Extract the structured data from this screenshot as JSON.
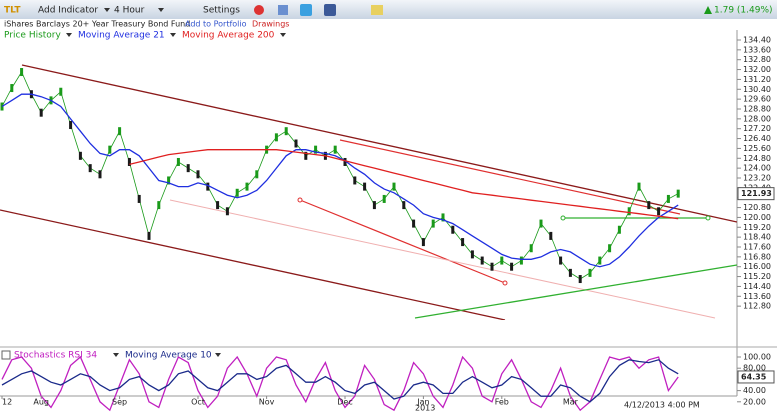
{
  "toolbar": {
    "symbol": "TLT",
    "add_indicator": "Add Indicator",
    "interval": "4 Hour",
    "settings": "Settings",
    "change": "1.79 (1.49%)",
    "fund_name": "iShares Barclays 20+ Year Treasury Bond Fund",
    "add_to_portfolio": "Add to Portfolio",
    "drawings": "Drawings"
  },
  "footer": {
    "timestamp": "4/12/2013 4:00 PM"
  },
  "chart_data": [
    {
      "type": "line",
      "markers": true,
      "down_color": "#1a1a1a",
      "x_sublabel": "2013",
      "categories": [
        "12",
        null,
        null,
        null,
        "Aug",
        null,
        null,
        null,
        null,
        null,
        null,
        null,
        "Sep",
        null,
        null,
        null,
        null,
        null,
        null,
        null,
        "Oct",
        null,
        null,
        null,
        null,
        null,
        null,
        "Nov",
        null,
        null,
        null,
        null,
        null,
        null,
        null,
        "Dec",
        null,
        null,
        null,
        null,
        null,
        null,
        null,
        "Jan",
        null,
        null,
        null,
        null,
        null,
        null,
        null,
        "Feb",
        null,
        null,
        null,
        null,
        null,
        null,
        "Mar",
        null,
        null,
        null,
        null,
        null,
        null,
        null,
        null,
        null,
        null,
        null
      ],
      "ylim": [
        112,
        135
      ],
      "yticks": [
        {
          "value": 112.8,
          "label": "112.80"
        },
        {
          "value": 113.6,
          "label": "113.60"
        },
        {
          "value": 114.4,
          "label": "114.40"
        },
        {
          "value": 115.2,
          "label": "115.20"
        },
        {
          "value": 116,
          "label": "116.00"
        },
        {
          "value": 116.8,
          "label": "116.80"
        },
        {
          "value": 117.6,
          "label": "117.60"
        },
        {
          "value": 118.4,
          "label": "118.40"
        },
        {
          "value": 119.2,
          "label": "119.20"
        },
        {
          "value": 120,
          "label": "120.00"
        },
        {
          "value": 120.8,
          "label": "120.80"
        },
        {
          "value": 121.6,
          "label": "121.60"
        },
        {
          "value": 122.4,
          "label": "122.40"
        },
        {
          "value": 123.2,
          "label": "123.20"
        },
        {
          "value": 124,
          "label": "124.00"
        },
        {
          "value": 124.8,
          "label": "124.80"
        },
        {
          "value": 125.6,
          "label": "125.60"
        },
        {
          "value": 126.4,
          "label": "126.40"
        },
        {
          "value": 127.2,
          "label": "127.20"
        },
        {
          "value": 128,
          "label": "128.00"
        },
        {
          "value": 128.8,
          "label": "128.80"
        },
        {
          "value": 129.6,
          "label": "129.60"
        },
        {
          "value": 130.4,
          "label": "130.40"
        },
        {
          "value": 131.2,
          "label": "131.20"
        },
        {
          "value": 132,
          "label": "132.00"
        },
        {
          "value": 132.8,
          "label": "132.80"
        },
        {
          "value": 133.6,
          "label": "133.60"
        },
        {
          "value": 134.4,
          "label": "134.40"
        }
      ],
      "series": [
        {
          "name": "Price History",
          "color": "#1a9a1a",
          "values": [
            129,
            130.5,
            131.8,
            130,
            128.5,
            129.5,
            130.2,
            127.5,
            125,
            124,
            123.5,
            125.5,
            127,
            124.5,
            121.5,
            118.5,
            121,
            123,
            124.5,
            124,
            123.5,
            122.5,
            121,
            120.5,
            122,
            122.5,
            123.5,
            125.5,
            126.5,
            127,
            126,
            125,
            125.5,
            125,
            125.5,
            124.5,
            123,
            122.5,
            121,
            121.5,
            122.5,
            121,
            119.5,
            118,
            119.5,
            120,
            119,
            118,
            117,
            116.5,
            116,
            116.5,
            116,
            116.5,
            117.5,
            119.5,
            118.5,
            116.5,
            115.5,
            115,
            115.5,
            116.5,
            117.5,
            119,
            120.5,
            122.5,
            121,
            120.5,
            121.5,
            121.93
          ]
        },
        {
          "name": "Moving Average 21",
          "color": "#1f2fe0",
          "values": [
            129,
            129.5,
            130,
            130,
            129.8,
            129.5,
            129,
            128,
            127,
            126,
            125.2,
            125,
            125.5,
            125.5,
            125,
            124,
            123,
            122.8,
            122.5,
            122.5,
            122.8,
            122.6,
            122.2,
            121.8,
            121.6,
            121.8,
            122.2,
            123,
            124,
            125,
            125.5,
            125.5,
            125.3,
            125.2,
            125,
            124.6,
            124,
            123.5,
            122.8,
            122.3,
            122,
            121.5,
            121,
            120.3,
            120,
            119.8,
            119.5,
            119,
            118.5,
            118,
            117.5,
            117,
            116.7,
            116.6,
            116.6,
            116.8,
            117.2,
            117.4,
            117.2,
            116.7,
            116.2,
            116,
            116.2,
            116.8,
            117.6,
            118.5,
            119.3,
            120,
            120.5,
            121
          ]
        },
        {
          "name": "Moving Average 200",
          "color": "#e02020",
          "values": [
            null,
            null,
            null,
            null,
            null,
            null,
            null,
            null,
            null,
            null,
            null,
            null,
            null,
            124.3,
            124.5,
            124.7,
            124.9,
            125.1,
            125.2,
            125.3,
            125.4,
            125.5,
            125.5,
            125.5,
            125.5,
            125.5,
            125.5,
            125.5,
            125.5,
            125.4,
            125.3,
            125.2,
            125.1,
            125,
            124.8,
            124.6,
            124.4,
            124.2,
            124,
            123.8,
            123.6,
            123.4,
            123.2,
            123,
            122.8,
            122.6,
            122.4,
            122.2,
            122,
            121.9,
            121.8,
            121.7,
            121.6,
            121.5,
            121.4,
            121.3,
            121.2,
            121.1,
            121,
            120.9,
            120.8,
            120.7,
            120.6,
            120.5,
            120.4,
            120.3,
            120.2,
            120.1,
            120,
            119.9
          ]
        }
      ]
    },
    {
      "type": "line",
      "ylim": [
        0,
        100
      ],
      "yticks": [
        {
          "value": 100,
          "label": "100.00"
        },
        {
          "value": 80,
          "label": "80.00"
        },
        {
          "value": 40,
          "label": "40.00"
        },
        {
          "value": 20,
          "label": "20.00"
        }
      ],
      "series": [
        {
          "name": "Stochastics RSI 34",
          "color": "#c020c0",
          "values": [
            60,
            95,
            100,
            80,
            30,
            10,
            40,
            85,
            100,
            60,
            20,
            5,
            50,
            95,
            70,
            20,
            10,
            60,
            100,
            90,
            40,
            10,
            30,
            80,
            100,
            70,
            30,
            80,
            100,
            95,
            50,
            20,
            60,
            90,
            40,
            10,
            30,
            85,
            60,
            15,
            5,
            40,
            90,
            70,
            30,
            10,
            50,
            100,
            80,
            30,
            20,
            70,
            95,
            60,
            20,
            10,
            40,
            80,
            30,
            5,
            20,
            60,
            100,
            95,
            100,
            80,
            95,
            100,
            40,
            64.35
          ]
        },
        {
          "name": "Moving Average 10",
          "color": "#1a2a8a",
          "values": [
            50,
            60,
            70,
            75,
            65,
            55,
            50,
            60,
            70,
            65,
            50,
            40,
            45,
            60,
            65,
            50,
            40,
            50,
            70,
            75,
            60,
            45,
            40,
            55,
            70,
            70,
            60,
            65,
            80,
            85,
            70,
            55,
            55,
            65,
            55,
            40,
            35,
            50,
            55,
            40,
            25,
            30,
            50,
            55,
            50,
            35,
            35,
            55,
            65,
            55,
            45,
            50,
            65,
            60,
            45,
            30,
            30,
            50,
            45,
            30,
            20,
            35,
            65,
            85,
            95,
            92,
            90,
            95,
            80,
            70
          ]
        }
      ]
    }
  ]
}
